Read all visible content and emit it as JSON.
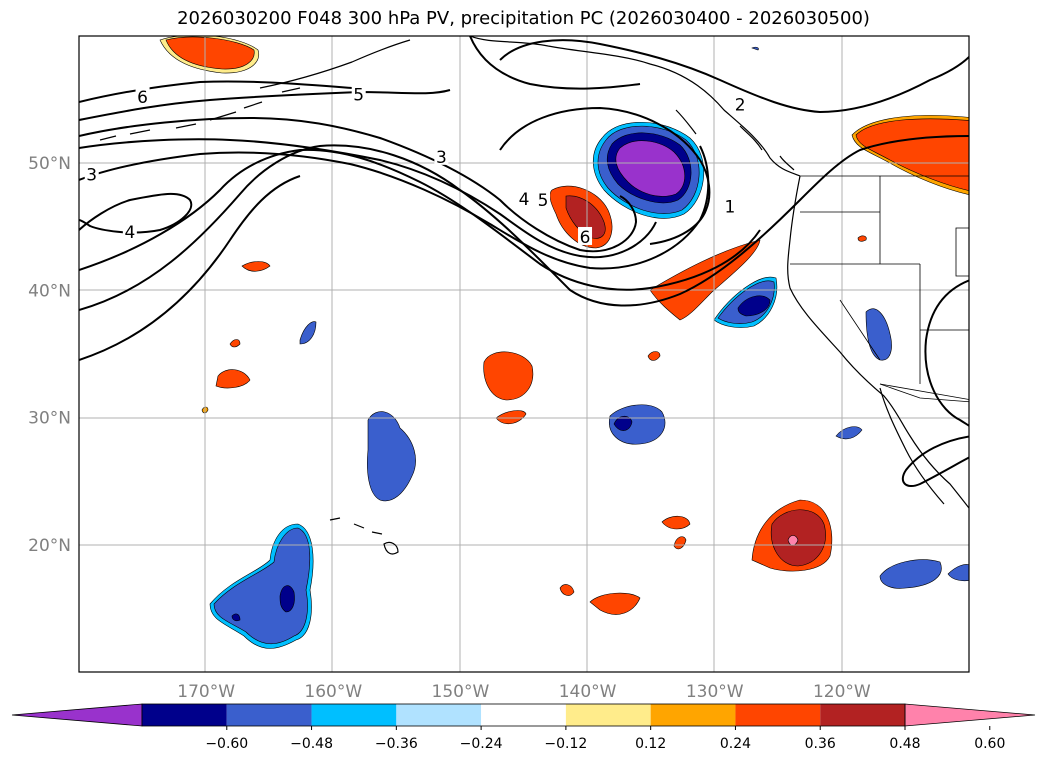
{
  "title": "2026030200 F048 300 hPa PV, precipitation PC (2026030400 - 2026030500)",
  "map": {
    "lon_range": [
      -180,
      -110
    ],
    "lat_range": [
      10,
      60
    ],
    "lat_gridlines": [
      {
        "lat": 50,
        "label": "50°N"
      },
      {
        "lat": 40,
        "label": "40°N"
      },
      {
        "lat": 30,
        "label": "30°N"
      },
      {
        "lat": 20,
        "label": "20°N"
      }
    ],
    "lon_gridlines": [
      {
        "lon": -170,
        "label": "170°W"
      },
      {
        "lon": -160,
        "label": "160°W"
      },
      {
        "lon": -150,
        "label": "150°W"
      },
      {
        "lon": -140,
        "label": "140°W"
      },
      {
        "lon": -130,
        "label": "130°W"
      },
      {
        "lon": -120,
        "label": "120°W"
      }
    ],
    "pv_contour_labels": [
      {
        "text": "6",
        "lon": -175,
        "lat": 55.2
      },
      {
        "text": "5",
        "lon": -158,
        "lat": 55.4
      },
      {
        "text": "2",
        "lon": -128,
        "lat": 54.6
      },
      {
        "text": "3",
        "lon": -179,
        "lat": 49.1
      },
      {
        "text": "3",
        "lon": -151.5,
        "lat": 50.5
      },
      {
        "text": "4",
        "lon": -176,
        "lat": 44.6
      },
      {
        "text": "4",
        "lon": -145,
        "lat": 47.2
      },
      {
        "text": "5",
        "lon": -143.5,
        "lat": 47.1
      },
      {
        "text": "6",
        "lon": -140.2,
        "lat": 44.2
      },
      {
        "text": "1",
        "lon": -128.8,
        "lat": 46.6
      }
    ]
  },
  "colorbar": {
    "ticks": [
      "−0.60",
      "−0.48",
      "−0.36",
      "−0.24",
      "−0.12",
      "0.12",
      "0.24",
      "0.36",
      "0.48",
      "0.60"
    ],
    "colors": [
      "#9932cc",
      "#00008b",
      "#3a5fcd",
      "#00bfff",
      "#b0e2ff",
      "#ffffff",
      "#ffec8b",
      "#ffa500",
      "#ff4500",
      "#b22222",
      "#ff82ab"
    ]
  },
  "colors": {
    "purple": "#9932cc",
    "navy": "#00008b",
    "royal_blue": "#3a5fcd",
    "sky_blue": "#00bfff",
    "light_blue": "#b0e2ff",
    "light_yellow": "#ffec8b",
    "orange": "#ffa500",
    "orange_red": "#ff4500",
    "firebrick": "#b22222",
    "pink": "#ff82ab"
  }
}
